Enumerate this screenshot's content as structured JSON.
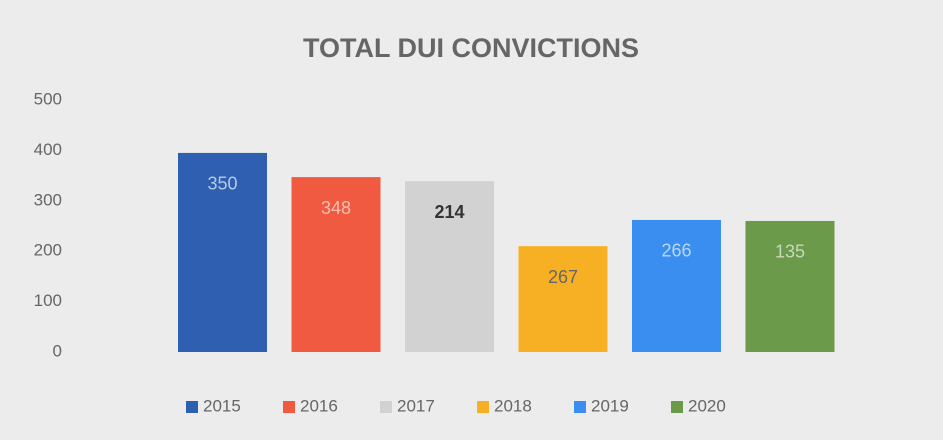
{
  "chart_data": {
    "type": "bar",
    "title": "TOTAL DUI CONVICTIONS",
    "categories": [
      null
    ],
    "series": [
      {
        "name": "2015",
        "color": "#2e5fb0",
        "values": [
          395
        ]
      },
      {
        "name": "2016",
        "color": "#f05a40",
        "values": [
          347
        ]
      },
      {
        "name": "2017",
        "color": "#d2d2d2",
        "values": [
          339
        ]
      },
      {
        "name": "2018",
        "color": "#f7b024",
        "values": [
          210
        ]
      },
      {
        "name": "2019",
        "color": "#3a8ef0",
        "values": [
          262
        ]
      },
      {
        "name": "2020",
        "color": "#6a9a4a",
        "values": [
          260
        ]
      }
    ],
    "annotations": [
      "350",
      "348",
      "214",
      "267",
      "266",
      "135"
    ],
    "ylim": [
      0,
      500
    ],
    "yticks": [
      0,
      100,
      200,
      300,
      400,
      500
    ],
    "grid": false,
    "legend": "bottom"
  }
}
